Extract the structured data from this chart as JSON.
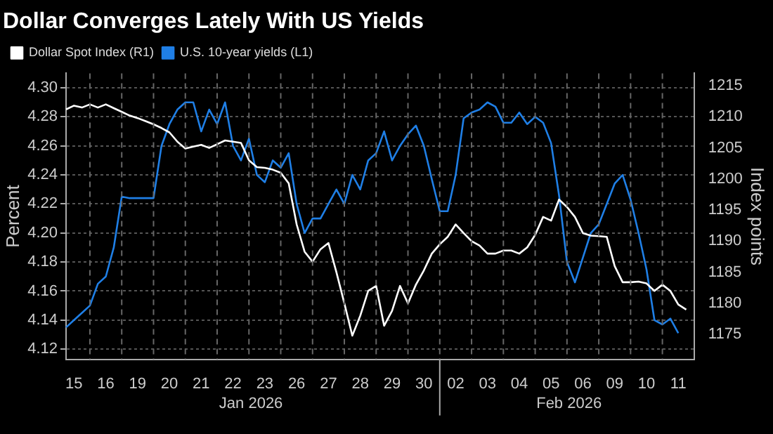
{
  "chart_data": {
    "type": "line",
    "title": "Dollar Converges Lately With US Yields",
    "ylabel": "Percent",
    "y2label": "Index points",
    "categories": [
      null,
      "15",
      null,
      null,
      null,
      "16",
      null,
      null,
      null,
      "19",
      null,
      null,
      null,
      "20",
      null,
      null,
      null,
      "21",
      null,
      null,
      null,
      "22",
      null,
      null,
      null,
      "23",
      null,
      null,
      null,
      "26",
      null,
      null,
      null,
      "27",
      null,
      null,
      null,
      "28",
      null,
      null,
      null,
      "29",
      null,
      null,
      null,
      "30",
      null,
      null,
      null,
      "02",
      null,
      null,
      null,
      "03",
      null,
      null,
      null,
      "04",
      null,
      null,
      null,
      "05",
      null,
      null,
      null,
      "06",
      null,
      null,
      null,
      "09",
      null,
      null,
      null,
      "10",
      null,
      null,
      null,
      "11",
      null,
      null
    ],
    "series": [
      {
        "name": "Dollar Spot Index (R1)",
        "color": "#ffffff",
        "axis": "y2",
        "values": [
          1211.2,
          1211.8,
          1211.5,
          1212,
          1211.5,
          1212,
          1211.4,
          1210.8,
          1210.2,
          1209.8,
          1209.3,
          1208.8,
          1208.2,
          1207.5,
          1206,
          1204.9,
          1205.2,
          1205.5,
          1205,
          1205.6,
          1206.2,
          1206,
          1205.8,
          1203,
          1201.9,
          1201.8,
          1201.5,
          1201,
          1199.3,
          1192.7,
          1188.3,
          1186.7,
          1188.7,
          1189.7,
          1185,
          1180,
          1174.8,
          1178,
          1182,
          1182.8,
          1176.4,
          1178.8,
          1182.8,
          1180,
          1183,
          1185.3,
          1188,
          1189.5,
          1190.7,
          1192.7,
          1191.3,
          1190,
          1189.3,
          1188,
          1188,
          1188.5,
          1188.5,
          1188,
          1189,
          1191,
          1193.9,
          1193.3,
          1196.7,
          1195.5,
          1193.9,
          1191.3,
          1190.9,
          1190.8,
          1190.7,
          1186,
          1183.4,
          1183.4,
          1183.5,
          1183.2,
          1182,
          1183,
          1182,
          1179.8,
          1179,
          null
        ]
      },
      {
        "name": "U.S. 10-year yields (L1)",
        "color": "#1f7fe6",
        "values": [
          4.135,
          4.14,
          4.145,
          4.15,
          4.165,
          4.17,
          4.19,
          4.225,
          4.224,
          4.224,
          4.224,
          4.224,
          4.26,
          4.275,
          4.285,
          4.29,
          4.29,
          4.27,
          4.285,
          4.275,
          4.29,
          4.26,
          4.25,
          4.265,
          4.24,
          4.235,
          4.25,
          4.245,
          4.255,
          4.22,
          4.2,
          4.21,
          4.21,
          4.22,
          4.23,
          4.22,
          4.24,
          4.23,
          4.25,
          4.255,
          4.27,
          4.25,
          4.26,
          4.268,
          4.274,
          4.26,
          4.237,
          4.215,
          4.215,
          4.24,
          4.279,
          4.283,
          4.285,
          4.29,
          4.287,
          4.276,
          4.276,
          4.283,
          4.275,
          4.28,
          4.276,
          4.262,
          4.226,
          4.18,
          4.166,
          4.183,
          4.2,
          4.206,
          4.22,
          4.234,
          4.24,
          4.223,
          4.2,
          4.175,
          4.14,
          4.137,
          4.141,
          4.131,
          null,
          null
        ]
      }
    ],
    "ylim": [
      4.113,
      4.31
    ],
    "yticks": [
      4.12,
      4.14,
      4.16,
      4.18,
      {
        "value": 4.2,
        "label": "4.20"
      },
      4.22,
      4.24,
      4.26,
      4.28,
      {
        "value": 4.3,
        "label": "4.30"
      }
    ],
    "y2lim": [
      1171,
      1217
    ],
    "y2ticks": [
      1175,
      1180,
      1185,
      1190,
      1195,
      1200,
      1205,
      1210,
      1215
    ],
    "annotations": [
      "Jan 2026",
      "Feb 2026"
    ],
    "grid": true,
    "legend": "top left",
    "marker": "none",
    "line_style": "solid"
  }
}
